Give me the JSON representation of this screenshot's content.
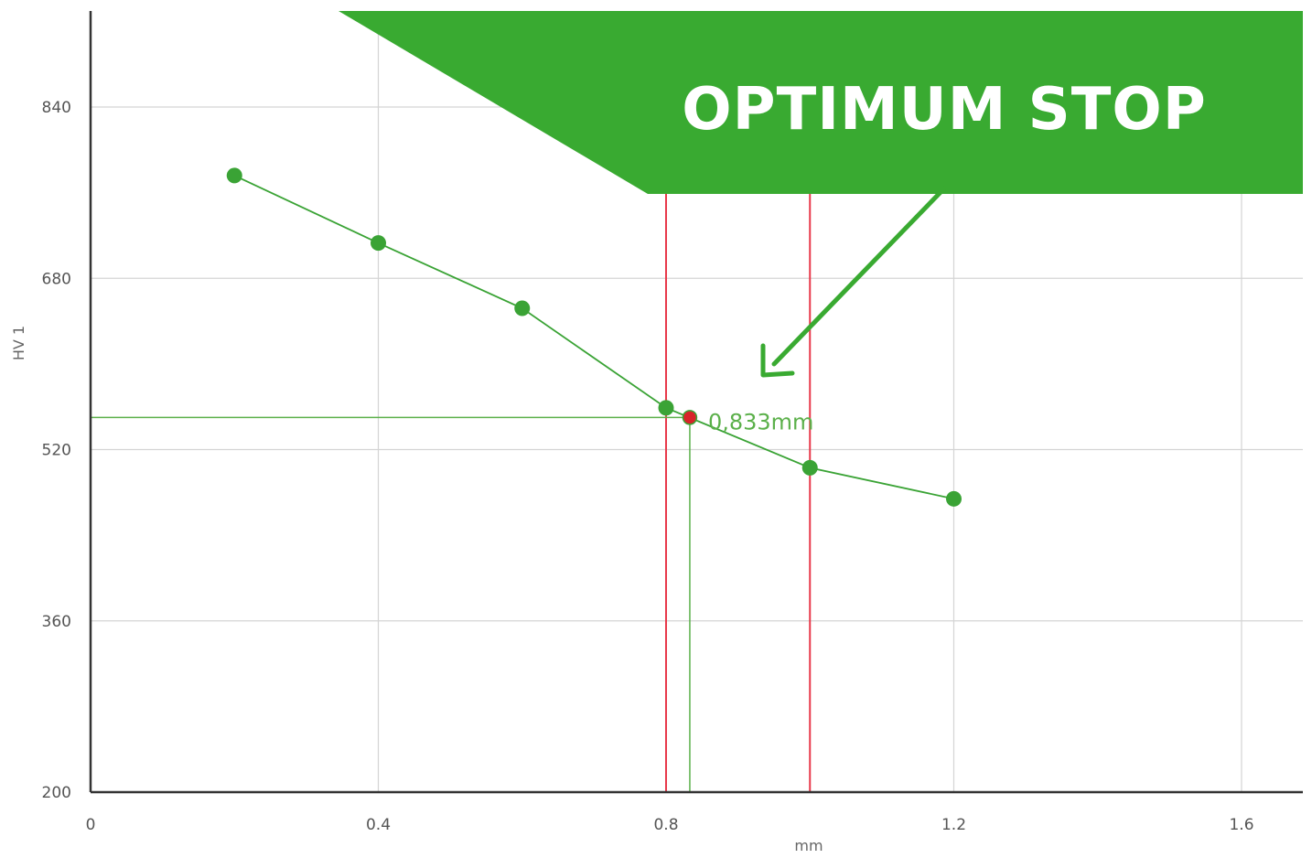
{
  "chart_data": {
    "type": "line",
    "xlabel": "mm",
    "ylabel": "HV 1",
    "xlim": [
      0,
      1.7
    ],
    "ylim": [
      200,
      840
    ],
    "x_ticks": [
      "0",
      "0.4",
      "0.8",
      "1.2",
      "1.6"
    ],
    "x_tick_values": [
      0,
      0.4,
      0.8,
      1.2,
      1.6
    ],
    "y_ticks": [
      "200",
      "360",
      "520",
      "680",
      "840"
    ],
    "y_tick_values": [
      200,
      360,
      520,
      680,
      840
    ],
    "grid": true,
    "series": [
      {
        "color": "#3aa335",
        "points": [
          {
            "x": 0.2,
            "y": 776
          },
          {
            "x": 0.4,
            "y": 713
          },
          {
            "x": 0.6,
            "y": 652
          },
          {
            "x": 0.8,
            "y": 559
          },
          {
            "x": 1.0,
            "y": 503
          },
          {
            "x": 1.2,
            "y": 474
          }
        ]
      }
    ],
    "marker": {
      "x": 0.833,
      "y": 550,
      "label": "0,833mm",
      "color": "#d8232a",
      "guide_color": "#5bb04a"
    },
    "limit_lines": {
      "x": [
        0.8,
        1.0
      ],
      "color": "#e8394a"
    },
    "banner": {
      "text": "OPTIMUM STOP",
      "color": "#39aa31"
    }
  }
}
